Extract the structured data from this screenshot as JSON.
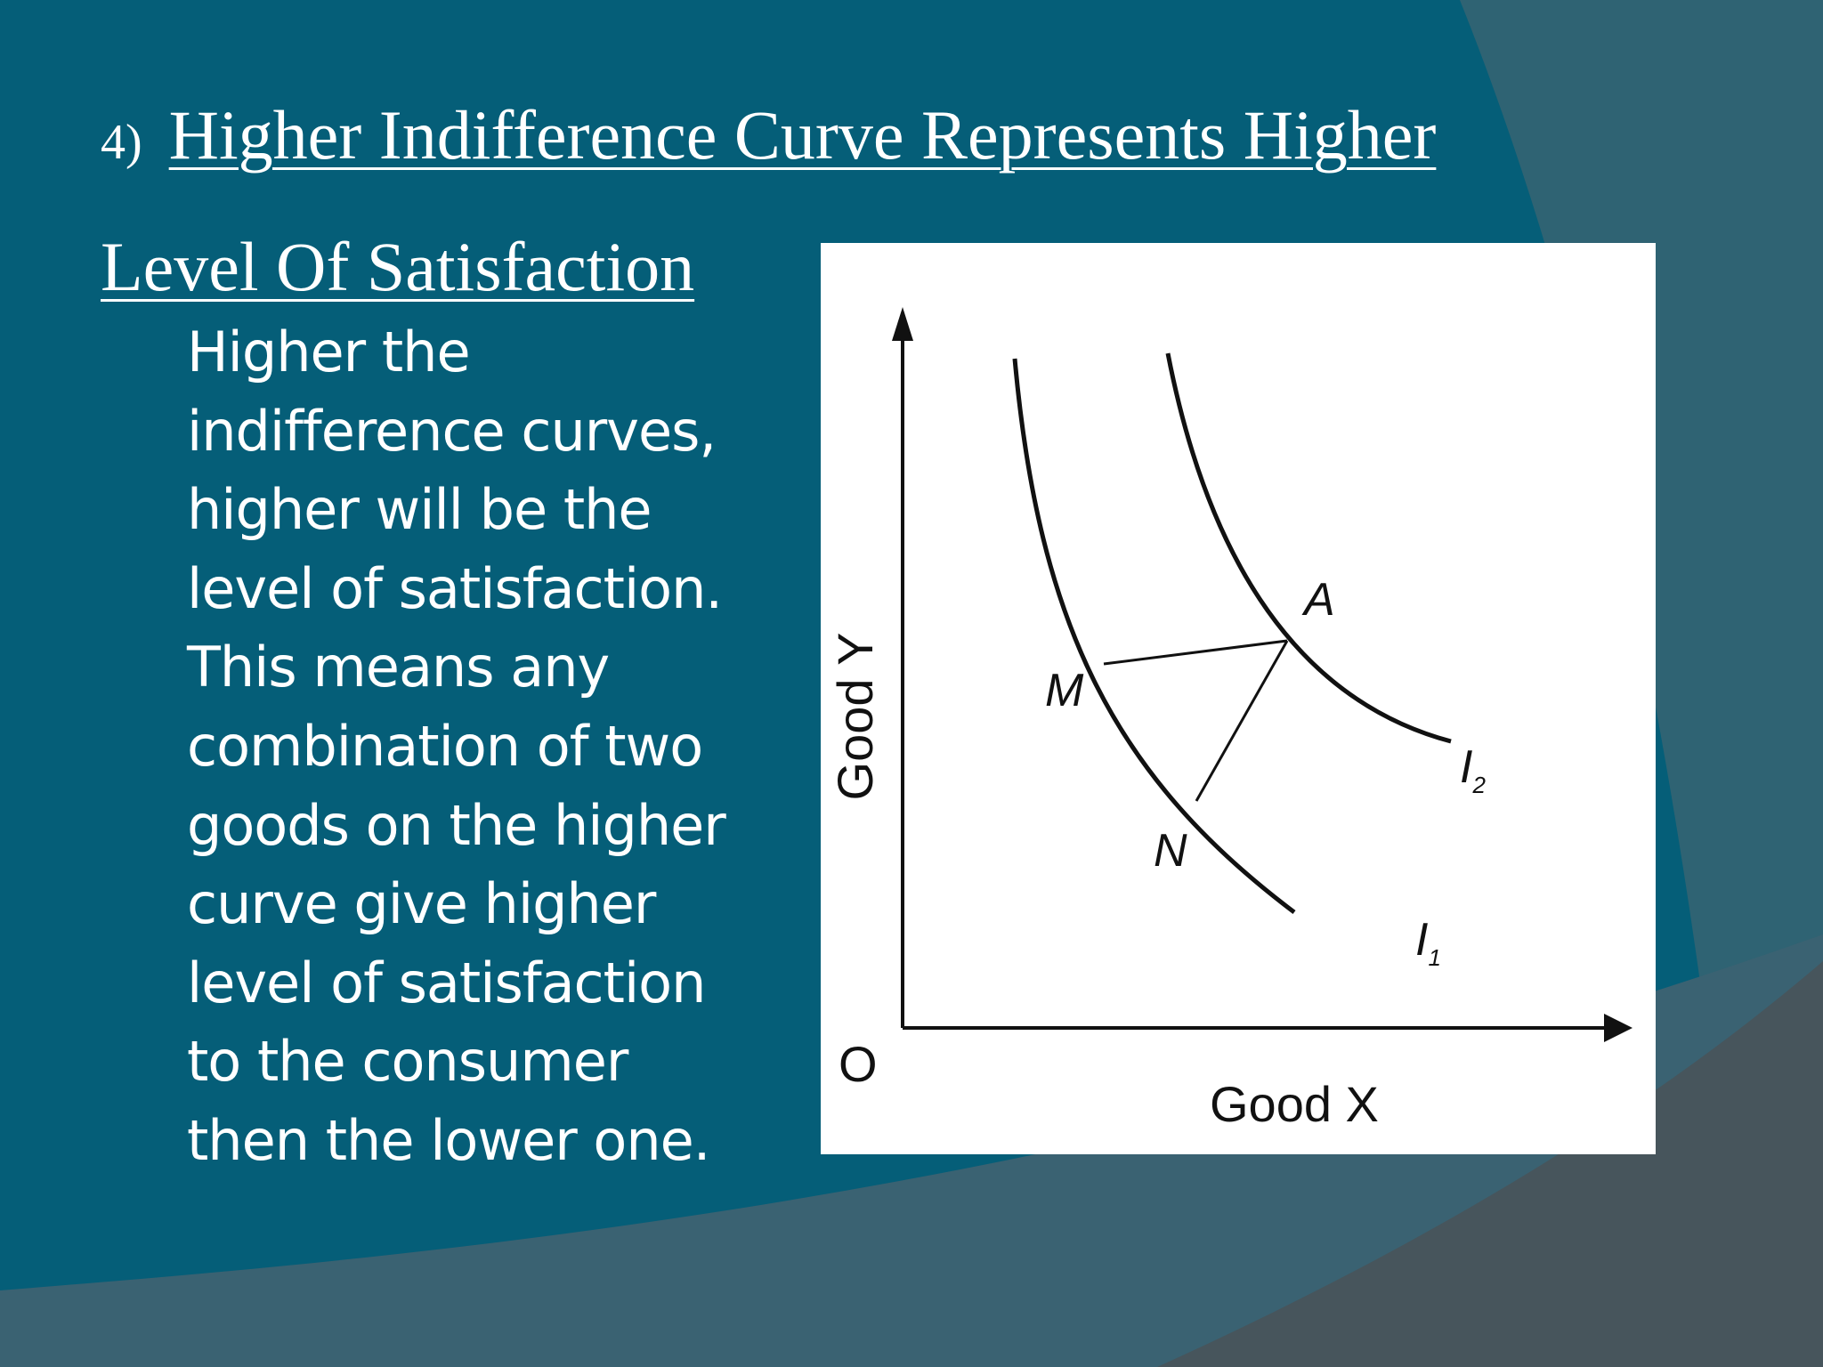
{
  "slide": {
    "number": "4)",
    "heading": "Higher Indifference Curve Represents Higher Level Of Satisfaction",
    "body": " Higher the\nindifference curves,\nhigher will be  the\nlevel of satisfaction.\nThis means any\ncombination of two\ngoods on the higher\ncurve give higher\nlevel of satisfaction\nto the  consumer\nthen the lower one."
  },
  "diagram": {
    "x_axis_label": "Good X",
    "y_axis_label": "Good Y",
    "origin_label": "O",
    "curves": [
      {
        "name": "I",
        "subscript": "1",
        "points": [
          "M",
          "N"
        ]
      },
      {
        "name": "I",
        "subscript": "2",
        "points": [
          "A"
        ]
      }
    ],
    "point_labels": {
      "M": "M",
      "N": "N",
      "A": "A"
    }
  },
  "colors": {
    "background": "#055e78",
    "band_light": "#2f6373",
    "band_dark": "#47555c",
    "text": "#ffffff",
    "diagram_ink": "#111111"
  }
}
